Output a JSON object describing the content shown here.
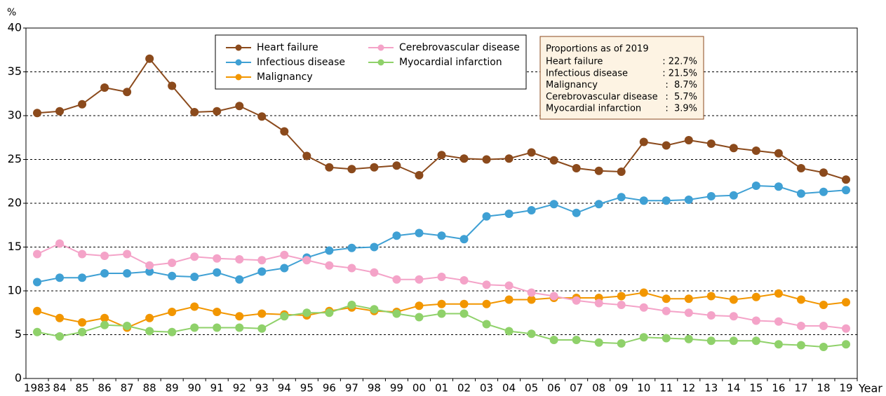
{
  "chart_data": {
    "type": "line",
    "y_axis_label": "%",
    "x_axis_label": "Year",
    "categories": [
      "1983",
      "84",
      "85",
      "86",
      "87",
      "88",
      "89",
      "90",
      "91",
      "92",
      "93",
      "94",
      "95",
      "96",
      "97",
      "98",
      "99",
      "00",
      "01",
      "02",
      "03",
      "04",
      "05",
      "06",
      "07",
      "08",
      "09",
      "10",
      "11",
      "12",
      "13",
      "14",
      "15",
      "16",
      "17",
      "18",
      "19"
    ],
    "ylim": [
      0,
      40
    ],
    "yticks": [
      0,
      5,
      10,
      15,
      20,
      25,
      30,
      35,
      40
    ],
    "grid": true,
    "series": [
      {
        "name": "Heart failure",
        "color": "#8b4a1c",
        "values": [
          30.3,
          30.5,
          31.3,
          33.2,
          32.7,
          36.5,
          33.4,
          30.4,
          30.5,
          31.1,
          29.9,
          28.2,
          25.4,
          24.1,
          23.9,
          24.1,
          24.3,
          23.2,
          25.5,
          25.1,
          25.0,
          25.1,
          25.8,
          24.9,
          24.0,
          23.7,
          23.6,
          27.0,
          26.6,
          27.2,
          26.8,
          26.3,
          26.0,
          25.7,
          24.0,
          23.5,
          22.7
        ]
      },
      {
        "name": "Infectious disease",
        "color": "#3fa0d4",
        "values": [
          11.0,
          11.5,
          11.5,
          12.0,
          12.0,
          12.2,
          11.7,
          11.6,
          12.1,
          11.3,
          12.2,
          12.6,
          13.8,
          14.6,
          14.9,
          15.0,
          16.3,
          16.6,
          16.3,
          15.9,
          18.5,
          18.8,
          19.2,
          19.9,
          18.9,
          19.9,
          20.7,
          20.3,
          20.3,
          20.4,
          20.8,
          20.9,
          22.0,
          21.9,
          21.1,
          21.3,
          21.5
        ]
      },
      {
        "name": "Malignancy",
        "color": "#f29600",
        "values": [
          7.7,
          6.9,
          6.4,
          6.9,
          5.8,
          6.9,
          7.6,
          8.2,
          7.6,
          7.1,
          7.4,
          7.3,
          7.2,
          7.7,
          8.1,
          7.7,
          7.6,
          8.3,
          8.5,
          8.5,
          8.5,
          9.0,
          9.0,
          9.2,
          9.2,
          9.2,
          9.4,
          9.8,
          9.1,
          9.1,
          9.4,
          9.0,
          9.3,
          9.7,
          9.0,
          8.4,
          8.7
        ]
      },
      {
        "name": "Cerebrovascular disease",
        "color": "#f4a3c8",
        "values": [
          14.2,
          15.4,
          14.2,
          14.0,
          14.2,
          12.9,
          13.2,
          13.9,
          13.7,
          13.6,
          13.5,
          14.1,
          13.5,
          12.9,
          12.6,
          12.1,
          11.3,
          11.3,
          11.6,
          11.2,
          10.7,
          10.6,
          9.8,
          9.4,
          8.9,
          8.6,
          8.4,
          8.1,
          7.7,
          7.5,
          7.2,
          7.1,
          6.6,
          6.5,
          6.0,
          6.0,
          5.7
        ]
      },
      {
        "name": "Myocardial infarction",
        "color": "#8fd16a",
        "values": [
          5.3,
          4.8,
          5.3,
          6.1,
          6.0,
          5.4,
          5.3,
          5.8,
          5.8,
          5.8,
          5.7,
          7.1,
          7.5,
          7.5,
          8.4,
          7.9,
          7.4,
          7.0,
          7.4,
          7.4,
          6.2,
          5.4,
          5.1,
          4.4,
          4.4,
          4.1,
          4.0,
          4.7,
          4.6,
          4.5,
          4.3,
          4.3,
          4.3,
          3.9,
          3.8,
          3.6,
          3.9
        ]
      }
    ],
    "annotation": {
      "title": "Proportions as of 2019",
      "rows": [
        [
          "Heart failure",
          ": 22.7%"
        ],
        [
          "Infectious disease",
          ": 21.5%"
        ],
        [
          "Malignancy",
          ":  8.7%"
        ],
        [
          "Cerebrovascular disease",
          ":  5.7%"
        ],
        [
          "Myocardial infarction",
          ":  3.9%"
        ]
      ]
    }
  }
}
